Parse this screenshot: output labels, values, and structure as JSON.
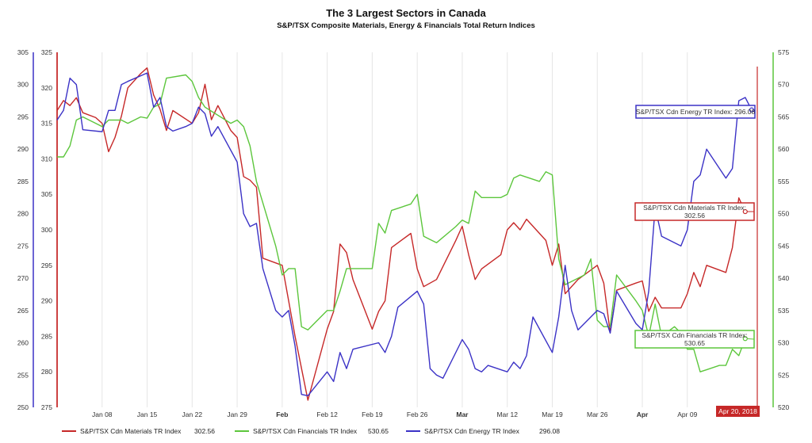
{
  "title": "The 3 Largest Sectors in Canada",
  "subtitle": "S&P/TSX Composite Materials, Energy & Financials Total Return Indices",
  "date_flag": "Apr 20, 2018",
  "colors": {
    "materials": "#c62828",
    "financials": "#5cc63c",
    "energy": "#3b32c6"
  },
  "chart_data": {
    "type": "line",
    "x_labels": [
      "Jan 08",
      "Jan 15",
      "Jan 22",
      "Jan 29",
      "Feb",
      "Feb 12",
      "Feb 19",
      "Feb 26",
      "Mar",
      "Mar 12",
      "Mar 19",
      "Mar 26",
      "Apr",
      "Apr 09"
    ],
    "x_label_bold": [
      false,
      false,
      false,
      false,
      true,
      false,
      false,
      false,
      true,
      false,
      false,
      false,
      true,
      false
    ],
    "x_label_day": [
      8,
      15,
      22,
      29,
      36,
      43,
      50,
      57,
      64,
      71,
      78,
      85,
      92,
      99
    ],
    "x_range": [
      1,
      110
    ],
    "axes": [
      {
        "name": "energy",
        "side": "left-outer",
        "range": [
          250,
          305
        ],
        "ticks": [
          250,
          255,
          260,
          265,
          270,
          275,
          280,
          285,
          290,
          295,
          300,
          305
        ]
      },
      {
        "name": "materials",
        "side": "left-inner",
        "range": [
          275,
          325
        ],
        "ticks": [
          275,
          280,
          285,
          290,
          295,
          300,
          305,
          310,
          315,
          320,
          325
        ]
      },
      {
        "name": "financials",
        "side": "right",
        "range": [
          520,
          575
        ],
        "ticks": [
          520,
          525,
          530,
          535,
          540,
          545,
          550,
          555,
          560,
          565,
          570,
          575
        ]
      }
    ],
    "series": [
      {
        "name": "S&P/TSX Cdn Materials TR Index",
        "key": "materials",
        "axis": "materials",
        "last_value": "302.56",
        "points": [
          [
            1,
            316.8
          ],
          [
            2,
            318.2
          ],
          [
            3,
            317.5
          ],
          [
            4,
            318.6
          ],
          [
            5,
            316.5
          ],
          [
            7,
            315.8
          ],
          [
            8,
            315.0
          ],
          [
            9,
            311.0
          ],
          [
            10,
            313.0
          ],
          [
            11,
            316.0
          ],
          [
            12,
            320.0
          ],
          [
            14,
            322.0
          ],
          [
            15,
            322.8
          ],
          [
            16,
            319.0
          ],
          [
            17,
            317.0
          ],
          [
            18,
            314.0
          ],
          [
            19,
            316.8
          ],
          [
            22,
            315.0
          ],
          [
            23,
            316.5
          ],
          [
            24,
            320.5
          ],
          [
            25,
            315.5
          ],
          [
            26,
            317.5
          ],
          [
            28,
            314.0
          ],
          [
            29,
            313.0
          ],
          [
            30,
            307.5
          ],
          [
            31,
            307.0
          ],
          [
            32,
            306.0
          ],
          [
            33,
            296.0
          ],
          [
            36,
            295.0
          ],
          [
            38,
            285.0
          ],
          [
            40,
            276.0
          ],
          [
            43,
            286.0
          ],
          [
            44,
            288.5
          ],
          [
            45,
            298.0
          ],
          [
            46,
            296.8
          ],
          [
            47,
            293.0
          ],
          [
            50,
            286.0
          ],
          [
            51,
            288.5
          ],
          [
            52,
            290.0
          ],
          [
            53,
            297.5
          ],
          [
            56,
            299.5
          ],
          [
            57,
            294.5
          ],
          [
            58,
            292.0
          ],
          [
            60,
            293.0
          ],
          [
            63,
            298.5
          ],
          [
            64,
            300.5
          ],
          [
            65,
            296.5
          ],
          [
            66,
            293.0
          ],
          [
            67,
            294.5
          ],
          [
            70,
            296.5
          ],
          [
            71,
            300.0
          ],
          [
            72,
            301.0
          ],
          [
            73,
            300.0
          ],
          [
            74,
            301.5
          ],
          [
            77,
            298.5
          ],
          [
            78,
            295.0
          ],
          [
            79,
            298.0
          ],
          [
            80,
            291.0
          ],
          [
            82,
            293.0
          ],
          [
            85,
            295.0
          ],
          [
            86,
            292.5
          ],
          [
            87,
            285.5
          ],
          [
            88,
            291.5
          ],
          [
            91,
            292.5
          ],
          [
            92,
            292.8
          ],
          [
            93,
            288.5
          ],
          [
            94,
            290.5
          ],
          [
            95,
            289.0
          ],
          [
            98,
            289.0
          ],
          [
            99,
            291.0
          ],
          [
            100,
            294.0
          ],
          [
            101,
            292.0
          ],
          [
            102,
            295.0
          ],
          [
            105,
            294.0
          ],
          [
            106,
            297.5
          ],
          [
            107,
            304.5
          ],
          [
            108,
            302.56
          ]
        ]
      },
      {
        "name": "S&P/TSX Cdn Financials TR Index",
        "key": "financials",
        "axis": "financials",
        "last_value": "530.65",
        "points": [
          [
            1,
            558.8
          ],
          [
            2,
            558.8
          ],
          [
            3,
            560.5
          ],
          [
            4,
            564.5
          ],
          [
            5,
            565.0
          ],
          [
            7,
            564.0
          ],
          [
            8,
            563.5
          ],
          [
            9,
            564.5
          ],
          [
            11,
            564.5
          ],
          [
            12,
            564.0
          ],
          [
            14,
            565.0
          ],
          [
            15,
            564.8
          ],
          [
            16,
            566.5
          ],
          [
            17,
            567.0
          ],
          [
            18,
            571.0
          ],
          [
            21,
            571.5
          ],
          [
            22,
            570.5
          ],
          [
            23,
            568.0
          ],
          [
            24,
            566.5
          ],
          [
            28,
            564.0
          ],
          [
            29,
            564.5
          ],
          [
            30,
            563.5
          ],
          [
            31,
            560.5
          ],
          [
            32,
            555.0
          ],
          [
            35,
            545.0
          ],
          [
            36,
            540.5
          ],
          [
            37,
            541.5
          ],
          [
            38,
            541.5
          ],
          [
            39,
            532.5
          ],
          [
            40,
            532.0
          ],
          [
            43,
            535.0
          ],
          [
            44,
            535.0
          ],
          [
            45,
            538.0
          ],
          [
            46,
            541.5
          ],
          [
            48,
            541.5
          ],
          [
            50,
            541.5
          ],
          [
            51,
            548.5
          ],
          [
            52,
            547.0
          ],
          [
            53,
            550.5
          ],
          [
            56,
            551.5
          ],
          [
            57,
            553.0
          ],
          [
            58,
            546.5
          ],
          [
            59,
            546.0
          ],
          [
            60,
            545.5
          ],
          [
            63,
            548.0
          ],
          [
            64,
            549.0
          ],
          [
            65,
            548.5
          ],
          [
            66,
            553.5
          ],
          [
            67,
            552.5
          ],
          [
            70,
            552.5
          ],
          [
            71,
            553.0
          ],
          [
            72,
            555.5
          ],
          [
            73,
            556.0
          ],
          [
            76,
            555.0
          ],
          [
            77,
            556.5
          ],
          [
            78,
            556.0
          ],
          [
            79,
            543.0
          ],
          [
            80,
            539.0
          ],
          [
            83,
            540.5
          ],
          [
            84,
            543.0
          ],
          [
            85,
            533.5
          ],
          [
            86,
            532.5
          ],
          [
            87,
            532.5
          ],
          [
            88,
            540.5
          ],
          [
            91,
            536.5
          ],
          [
            92,
            535.0
          ],
          [
            93,
            531.0
          ],
          [
            94,
            536.0
          ],
          [
            95,
            531.0
          ],
          [
            97,
            532.5
          ],
          [
            98,
            531.5
          ],
          [
            99,
            529.0
          ],
          [
            100,
            529.0
          ],
          [
            101,
            525.5
          ],
          [
            104,
            526.5
          ],
          [
            105,
            526.5
          ],
          [
            106,
            529.0
          ],
          [
            107,
            528.0
          ],
          [
            108,
            530.65
          ]
        ]
      },
      {
        "name": "S&P/TSX Cdn Energy TR Index",
        "key": "energy",
        "axis": "energy",
        "last_value": "296.08",
        "points": [
          [
            1,
            294.5
          ],
          [
            2,
            296.0
          ],
          [
            3,
            301.0
          ],
          [
            4,
            300.0
          ],
          [
            5,
            293.0
          ],
          [
            8,
            292.7
          ],
          [
            9,
            296.0
          ],
          [
            10,
            296.0
          ],
          [
            11,
            300.0
          ],
          [
            12,
            300.5
          ],
          [
            15,
            301.8
          ],
          [
            16,
            296.5
          ],
          [
            17,
            298.0
          ],
          [
            18,
            293.5
          ],
          [
            19,
            292.8
          ],
          [
            21,
            293.5
          ],
          [
            22,
            294.0
          ],
          [
            23,
            296.5
          ],
          [
            24,
            295.5
          ],
          [
            25,
            292.0
          ],
          [
            26,
            293.5
          ],
          [
            29,
            288.0
          ],
          [
            30,
            280.0
          ],
          [
            31,
            278.0
          ],
          [
            32,
            278.5
          ],
          [
            33,
            271.5
          ],
          [
            35,
            265.0
          ],
          [
            36,
            264.0
          ],
          [
            37,
            265.0
          ],
          [
            38,
            259.5
          ],
          [
            39,
            252.0
          ],
          [
            40,
            251.8
          ],
          [
            43,
            255.5
          ],
          [
            44,
            254.0
          ],
          [
            45,
            258.5
          ],
          [
            46,
            256.0
          ],
          [
            47,
            259.0
          ],
          [
            51,
            260.0
          ],
          [
            52,
            258.5
          ],
          [
            53,
            261.0
          ],
          [
            54,
            265.5
          ],
          [
            57,
            268.0
          ],
          [
            58,
            266.0
          ],
          [
            59,
            256.0
          ],
          [
            60,
            255.0
          ],
          [
            61,
            254.5
          ],
          [
            64,
            260.5
          ],
          [
            65,
            259.0
          ],
          [
            66,
            256.0
          ],
          [
            67,
            255.5
          ],
          [
            68,
            256.5
          ],
          [
            71,
            255.5
          ],
          [
            72,
            257.0
          ],
          [
            73,
            256.0
          ],
          [
            74,
            258.0
          ],
          [
            75,
            264.0
          ],
          [
            78,
            258.5
          ],
          [
            79,
            264.0
          ],
          [
            80,
            272.0
          ],
          [
            81,
            265.0
          ],
          [
            82,
            262.0
          ],
          [
            85,
            265.0
          ],
          [
            86,
            264.5
          ],
          [
            87,
            261.5
          ],
          [
            88,
            268.0
          ],
          [
            91,
            263.0
          ],
          [
            92,
            262.0
          ],
          [
            93,
            268.0
          ],
          [
            94,
            281.0
          ],
          [
            95,
            276.5
          ],
          [
            98,
            275.0
          ],
          [
            99,
            277.5
          ],
          [
            100,
            285.0
          ],
          [
            101,
            286.0
          ],
          [
            102,
            290.0
          ],
          [
            105,
            285.5
          ],
          [
            106,
            287.0
          ],
          [
            107,
            297.5
          ],
          [
            108,
            298.0
          ],
          [
            109,
            296.08
          ]
        ]
      }
    ],
    "callouts": [
      {
        "key": "energy",
        "line1": "S&P/TSX Cdn Energy TR Index: 296.08",
        "line2": ""
      },
      {
        "key": "materials",
        "line1": "S&P/TSX Cdn Materials TR Index:",
        "line2": "302.56"
      },
      {
        "key": "financials",
        "line1": "S&P/TSX Cdn Financials TR Index:",
        "line2": "530.65"
      }
    ]
  }
}
